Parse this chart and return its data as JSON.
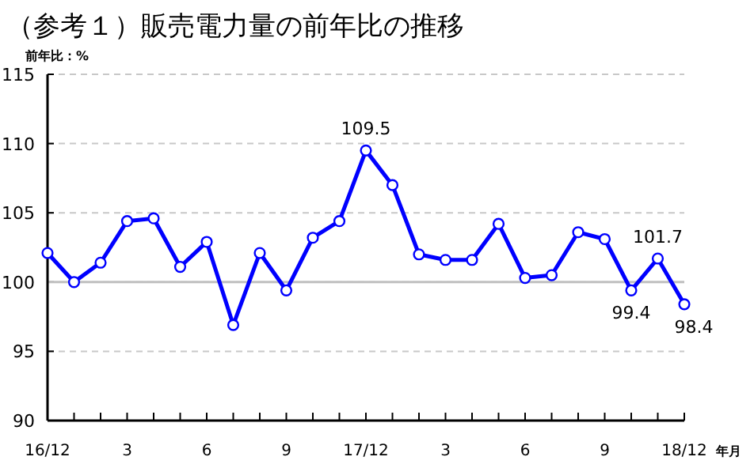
{
  "chart_data": {
    "type": "line",
    "title": "（参考１）販売電力量の前年比の推移",
    "ylabel": "前年比：%",
    "xlabel": "年月",
    "categories": [
      "16/12",
      null,
      null,
      "3",
      null,
      null,
      "6",
      null,
      null,
      "9",
      null,
      null,
      "17/12",
      null,
      null,
      "3",
      null,
      null,
      "6",
      null,
      null,
      "9",
      null,
      null,
      "18/12"
    ],
    "series": [
      {
        "color": "#0000ff",
        "values": [
          102.1,
          100.0,
          101.4,
          104.4,
          104.6,
          101.1,
          102.9,
          96.9,
          102.1,
          99.4,
          103.2,
          104.4,
          109.5,
          107.0,
          102.0,
          101.6,
          101.6,
          104.2,
          100.3,
          100.5,
          103.6,
          103.1,
          99.4,
          101.7,
          98.4
        ],
        "value_labels": [
          null,
          null,
          null,
          null,
          null,
          null,
          null,
          null,
          null,
          null,
          null,
          null,
          "109.5",
          null,
          null,
          null,
          null,
          null,
          null,
          null,
          null,
          null,
          "99.4",
          "101.7",
          "98.4"
        ]
      }
    ],
    "ylim": [
      90,
      115
    ],
    "yticks": [
      90,
      95,
      100,
      105,
      110,
      115
    ],
    "grid": "y",
    "marker": "circle",
    "line_style": "solid",
    "ref_lines": [
      {
        "axis": "y",
        "value": 100,
        "color": "#c0c0c0",
        "line_style": "solid"
      }
    ]
  }
}
